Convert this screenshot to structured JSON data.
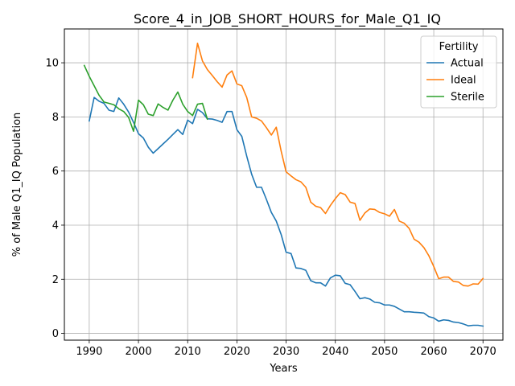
{
  "chart_data": {
    "type": "line",
    "title": "Score_4_in_JOB_SHORT_HOURS_for_Male_Q1_IQ",
    "xlabel": "Years",
    "ylabel": "% of Male Q1_IQ Population",
    "xlim": [
      1984.95,
      2074.05
    ],
    "ylim": [
      -0.25,
      11.25
    ],
    "xticks": [
      1990,
      2000,
      2010,
      2020,
      2030,
      2040,
      2050,
      2060,
      2070
    ],
    "yticks": [
      0,
      2,
      4,
      6,
      8,
      10
    ],
    "grid": true,
    "legend": {
      "title": "Fertility",
      "placement": "top-right"
    },
    "series": [
      {
        "name": "Actual",
        "color": "#1f77b4",
        "points": [
          [
            1990,
            7.85
          ],
          [
            1991,
            8.72
          ],
          [
            1992,
            8.58
          ],
          [
            1993,
            8.5
          ],
          [
            1994,
            8.25
          ],
          [
            1995,
            8.2
          ],
          [
            1996,
            8.7
          ],
          [
            1997,
            8.47
          ],
          [
            1998,
            8.18
          ],
          [
            1999,
            7.8
          ],
          [
            2000,
            7.38
          ],
          [
            2001,
            7.22
          ],
          [
            2002,
            6.88
          ],
          [
            2003,
            6.66
          ],
          [
            2004,
            6.83
          ],
          [
            2005,
            7.0
          ],
          [
            2006,
            7.17
          ],
          [
            2007,
            7.35
          ],
          [
            2008,
            7.53
          ],
          [
            2009,
            7.35
          ],
          [
            2010,
            7.88
          ],
          [
            2011,
            7.75
          ],
          [
            2012,
            8.28
          ],
          [
            2013,
            8.16
          ],
          [
            2014,
            7.93
          ],
          [
            2015,
            7.92
          ],
          [
            2016,
            7.87
          ],
          [
            2017,
            7.8
          ],
          [
            2018,
            8.2
          ],
          [
            2019,
            8.2
          ],
          [
            2020,
            7.53
          ],
          [
            2021,
            7.28
          ],
          [
            2022,
            6.55
          ],
          [
            2023,
            5.88
          ],
          [
            2024,
            5.4
          ],
          [
            2025,
            5.4
          ],
          [
            2026,
            4.95
          ],
          [
            2027,
            4.47
          ],
          [
            2028,
            4.15
          ],
          [
            2029,
            3.65
          ],
          [
            2030,
            3.0
          ],
          [
            2031,
            2.95
          ],
          [
            2032,
            2.42
          ],
          [
            2033,
            2.4
          ],
          [
            2034,
            2.33
          ],
          [
            2035,
            1.95
          ],
          [
            2036,
            1.87
          ],
          [
            2037,
            1.87
          ],
          [
            2038,
            1.75
          ],
          [
            2039,
            2.05
          ],
          [
            2040,
            2.15
          ],
          [
            2041,
            2.13
          ],
          [
            2042,
            1.85
          ],
          [
            2043,
            1.8
          ],
          [
            2044,
            1.55
          ],
          [
            2045,
            1.28
          ],
          [
            2046,
            1.32
          ],
          [
            2047,
            1.27
          ],
          [
            2048,
            1.15
          ],
          [
            2049,
            1.13
          ],
          [
            2050,
            1.05
          ],
          [
            2051,
            1.05
          ],
          [
            2052,
            1.0
          ],
          [
            2053,
            0.9
          ],
          [
            2054,
            0.8
          ],
          [
            2055,
            0.8
          ],
          [
            2056,
            0.78
          ],
          [
            2057,
            0.77
          ],
          [
            2058,
            0.75
          ],
          [
            2059,
            0.62
          ],
          [
            2060,
            0.57
          ],
          [
            2061,
            0.45
          ],
          [
            2062,
            0.5
          ],
          [
            2063,
            0.48
          ],
          [
            2064,
            0.42
          ],
          [
            2065,
            0.4
          ],
          [
            2066,
            0.35
          ],
          [
            2067,
            0.28
          ],
          [
            2068,
            0.3
          ],
          [
            2069,
            0.3
          ],
          [
            2070,
            0.27
          ]
        ]
      },
      {
        "name": "Ideal",
        "color": "#ff7f0e",
        "points": [
          [
            2011,
            9.45
          ],
          [
            2012,
            10.72
          ],
          [
            2013,
            10.07
          ],
          [
            2014,
            9.75
          ],
          [
            2015,
            9.53
          ],
          [
            2016,
            9.3
          ],
          [
            2017,
            9.1
          ],
          [
            2018,
            9.55
          ],
          [
            2019,
            9.7
          ],
          [
            2020,
            9.22
          ],
          [
            2021,
            9.15
          ],
          [
            2022,
            8.72
          ],
          [
            2023,
            8.0
          ],
          [
            2024,
            7.95
          ],
          [
            2025,
            7.85
          ],
          [
            2026,
            7.6
          ],
          [
            2027,
            7.33
          ],
          [
            2028,
            7.62
          ],
          [
            2029,
            6.73
          ],
          [
            2030,
            5.97
          ],
          [
            2031,
            5.82
          ],
          [
            2032,
            5.68
          ],
          [
            2033,
            5.6
          ],
          [
            2034,
            5.4
          ],
          [
            2035,
            4.85
          ],
          [
            2036,
            4.7
          ],
          [
            2037,
            4.65
          ],
          [
            2038,
            4.43
          ],
          [
            2039,
            4.73
          ],
          [
            2040,
            4.98
          ],
          [
            2041,
            5.2
          ],
          [
            2042,
            5.13
          ],
          [
            2043,
            4.85
          ],
          [
            2044,
            4.8
          ],
          [
            2045,
            4.18
          ],
          [
            2046,
            4.45
          ],
          [
            2047,
            4.6
          ],
          [
            2048,
            4.58
          ],
          [
            2049,
            4.47
          ],
          [
            2050,
            4.42
          ],
          [
            2051,
            4.33
          ],
          [
            2052,
            4.58
          ],
          [
            2053,
            4.15
          ],
          [
            2054,
            4.07
          ],
          [
            2055,
            3.88
          ],
          [
            2056,
            3.48
          ],
          [
            2057,
            3.37
          ],
          [
            2058,
            3.17
          ],
          [
            2059,
            2.87
          ],
          [
            2060,
            2.47
          ],
          [
            2061,
            2.02
          ],
          [
            2062,
            2.08
          ],
          [
            2063,
            2.08
          ],
          [
            2064,
            1.92
          ],
          [
            2065,
            1.9
          ],
          [
            2066,
            1.77
          ],
          [
            2067,
            1.75
          ],
          [
            2068,
            1.83
          ],
          [
            2069,
            1.82
          ],
          [
            2070,
            2.03
          ]
        ]
      },
      {
        "name": "Sterile",
        "color": "#2ca02c",
        "points": [
          [
            1989,
            9.9
          ],
          [
            1990,
            9.5
          ],
          [
            1991,
            9.15
          ],
          [
            1992,
            8.8
          ],
          [
            1993,
            8.55
          ],
          [
            1994,
            8.5
          ],
          [
            1995,
            8.45
          ],
          [
            1996,
            8.3
          ],
          [
            1997,
            8.2
          ],
          [
            1998,
            7.98
          ],
          [
            1999,
            7.47
          ],
          [
            2000,
            8.62
          ],
          [
            2001,
            8.45
          ],
          [
            2002,
            8.1
          ],
          [
            2003,
            8.05
          ],
          [
            2004,
            8.48
          ],
          [
            2005,
            8.35
          ],
          [
            2006,
            8.25
          ],
          [
            2007,
            8.62
          ],
          [
            2008,
            8.92
          ],
          [
            2009,
            8.47
          ],
          [
            2010,
            8.2
          ],
          [
            2011,
            8.05
          ],
          [
            2012,
            8.47
          ],
          [
            2013,
            8.5
          ],
          [
            2014,
            7.92
          ]
        ]
      }
    ]
  }
}
